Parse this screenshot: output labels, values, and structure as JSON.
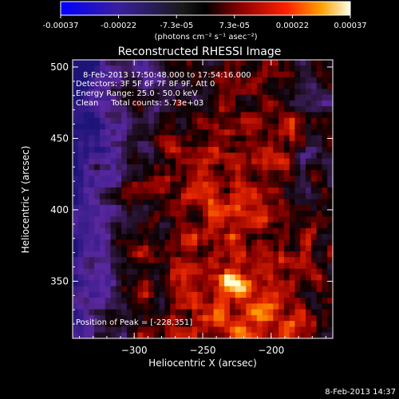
{
  "chart_data": {
    "type": "heatmap",
    "title": "Reconstructed RHESSI Image",
    "xlabel": "Heliocentric X (arcsec)",
    "ylabel": "Heliocentric Y (arcsec)",
    "xlim": [
      -345,
      -155
    ],
    "ylim": [
      310,
      505
    ],
    "xticks": [
      -300,
      -250,
      -200
    ],
    "yticks": [
      350,
      400,
      450,
      500
    ],
    "colorbar": {
      "ticks": [
        "-0.00037",
        "-0.00022",
        "-7.3e-05",
        "7.3e-05",
        "0.00022",
        "0.00037"
      ],
      "range": [
        -0.00037,
        0.00037
      ],
      "units": "(photons cm⁻² s⁻¹ asec⁻²)"
    },
    "annotations": [
      "8-Feb-2013 17:50:48.000 to 17:54:16.000",
      "Detectors: 3F 5F 6F 7F 8F 9F, Att 0",
      "Energy Range: 25.0 - 50.0 keV",
      "Clean     Total counts: 5.73e+03"
    ],
    "peak_label": "Position of Peak = [-228,351]",
    "peak": [
      -228,
      351
    ],
    "footer_date": "8-Feb-2013 14:37",
    "colors": {
      "background": "#000000",
      "text": "#ffffff"
    }
  }
}
